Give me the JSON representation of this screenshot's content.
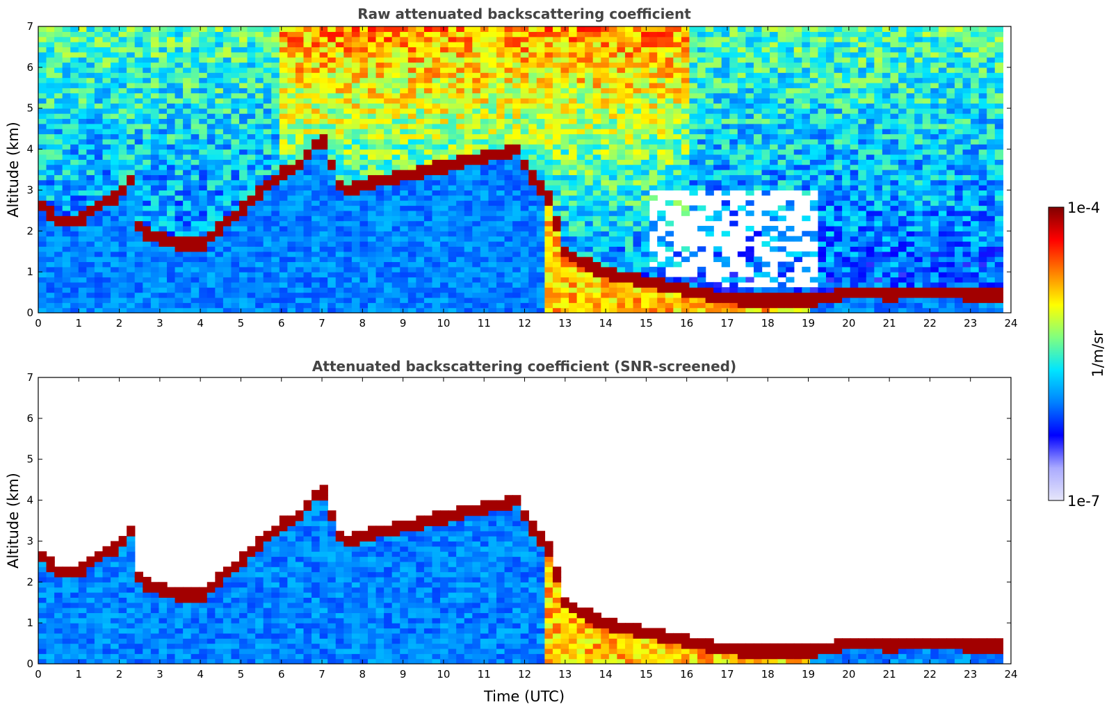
{
  "chart_data": [
    {
      "type": "heatmap",
      "title": "Raw attenuated backscattering coefficient",
      "xlabel": "",
      "ylabel": "Altitude (km)",
      "xlim": [
        0,
        24
      ],
      "ylim": [
        0,
        7
      ],
      "x_ticks": [
        "0",
        "1",
        "2",
        "3",
        "4",
        "5",
        "6",
        "7",
        "8",
        "9",
        "10",
        "11",
        "12",
        "13",
        "14",
        "15",
        "16",
        "17",
        "18",
        "19",
        "20",
        "21",
        "22",
        "23",
        "24"
      ],
      "y_ticks": [
        "0",
        "1",
        "2",
        "3",
        "4",
        "5",
        "6",
        "7"
      ],
      "screened": false,
      "layer_top_profile": [
        [
          0,
          2.7
        ],
        [
          0.5,
          2.25
        ],
        [
          1,
          2.25
        ],
        [
          1.3,
          2.5
        ],
        [
          2,
          2.9
        ],
        [
          2.3,
          3.3
        ],
        [
          2.5,
          2.0
        ],
        [
          3,
          1.85
        ],
        [
          3.5,
          1.7
        ],
        [
          4,
          1.65
        ],
        [
          4.4,
          2.0
        ],
        [
          5,
          2.5
        ],
        [
          5.5,
          3.0
        ],
        [
          6,
          3.4
        ],
        [
          6.4,
          3.6
        ],
        [
          7,
          4.3
        ],
        [
          7.3,
          3.5
        ],
        [
          7.5,
          3.0
        ],
        [
          11.8,
          4.0
        ],
        [
          12.2,
          3.3
        ],
        [
          12.6,
          2.8
        ],
        [
          13,
          1.5
        ],
        [
          13.5,
          1.2
        ],
        [
          14,
          1.0
        ],
        [
          15,
          0.75
        ],
        [
          16,
          0.55
        ],
        [
          17,
          0.35
        ],
        [
          18,
          0.3
        ],
        [
          19,
          0.3
        ],
        [
          19.5,
          0.4
        ],
        [
          20,
          0.5
        ],
        [
          21,
          0.45
        ],
        [
          22,
          0.5
        ],
        [
          23,
          0.45
        ],
        [
          23.8,
          0.45
        ]
      ]
    },
    {
      "type": "heatmap",
      "title": "Attenuated backscattering coefficient (SNR-screened)",
      "xlabel": "Time (UTC)",
      "ylabel": "Altitude (km)",
      "xlim": [
        0,
        24
      ],
      "ylim": [
        0,
        7
      ],
      "x_ticks": [
        "0",
        "1",
        "2",
        "3",
        "4",
        "5",
        "6",
        "7",
        "8",
        "9",
        "10",
        "11",
        "12",
        "13",
        "14",
        "15",
        "16",
        "17",
        "18",
        "19",
        "20",
        "21",
        "22",
        "23",
        "24"
      ],
      "y_ticks": [
        "0",
        "1",
        "2",
        "3",
        "4",
        "5",
        "6",
        "7"
      ],
      "screened": true,
      "layer_top_profile": [
        [
          0,
          2.7
        ],
        [
          0.5,
          2.25
        ],
        [
          1,
          2.25
        ],
        [
          1.3,
          2.5
        ],
        [
          2,
          2.9
        ],
        [
          2.3,
          3.3
        ],
        [
          2.5,
          2.0
        ],
        [
          3,
          1.85
        ],
        [
          3.5,
          1.7
        ],
        [
          4,
          1.65
        ],
        [
          4.4,
          2.0
        ],
        [
          5,
          2.5
        ],
        [
          5.5,
          3.0
        ],
        [
          6,
          3.4
        ],
        [
          6.4,
          3.6
        ],
        [
          7,
          4.3
        ],
        [
          7.3,
          3.5
        ],
        [
          7.5,
          3.0
        ],
        [
          11.8,
          4.0
        ],
        [
          12.2,
          3.3
        ],
        [
          12.6,
          2.8
        ],
        [
          13,
          1.5
        ],
        [
          13.5,
          1.2
        ],
        [
          14,
          1.0
        ],
        [
          15,
          0.75
        ],
        [
          16,
          0.55
        ],
        [
          17,
          0.35
        ],
        [
          18,
          0.3
        ],
        [
          19,
          0.3
        ],
        [
          19.5,
          0.4
        ],
        [
          20,
          0.5
        ],
        [
          21,
          0.45
        ],
        [
          22,
          0.5
        ],
        [
          23,
          0.45
        ],
        [
          23.8,
          0.45
        ]
      ]
    }
  ],
  "colorbar": {
    "label": "1/m/sr",
    "max_label": "1e-4",
    "min_label": "1e-7",
    "range": [
      1e-07,
      0.0001
    ],
    "scale": "log",
    "colors": [
      "#e6e6fa",
      "#aaaaff",
      "#0000ff",
      "#0080ff",
      "#00e5ff",
      "#80ff80",
      "#ffff00",
      "#ff8000",
      "#ff0000",
      "#800000"
    ]
  }
}
